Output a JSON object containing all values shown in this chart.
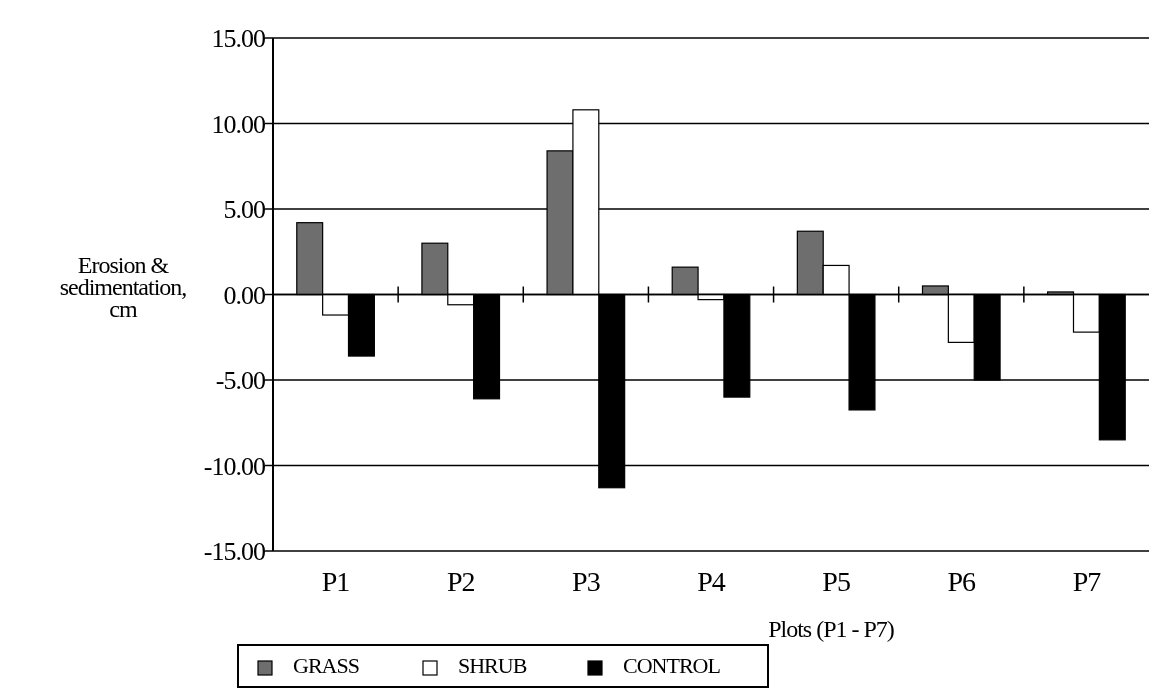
{
  "chart_data": {
    "type": "bar",
    "xlabel": "Plots (P1 - P7)",
    "ylabel": "Erosion & sedimentation, cm",
    "categories": [
      "P1",
      "P2",
      "P3",
      "P4",
      "P5",
      "P6",
      "P7"
    ],
    "series": [
      {
        "name": "GRASS",
        "color": "#6e6e6e",
        "values": [
          4.2,
          3.0,
          8.4,
          1.6,
          3.7,
          0.5,
          0.15
        ]
      },
      {
        "name": "SHRUB",
        "color": "#ffffff",
        "values": [
          -1.2,
          -0.6,
          10.8,
          -0.3,
          1.7,
          -2.8,
          -2.2
        ]
      },
      {
        "name": "CONTROL",
        "color": "#000000",
        "values": [
          -3.6,
          -6.1,
          -11.3,
          -6.0,
          -6.75,
          -5.0,
          -8.5
        ]
      }
    ],
    "ylim": [
      -15,
      15
    ],
    "yticks": [
      {
        "value": -15,
        "label": "-15.00"
      },
      {
        "value": -10,
        "label": "-10.00"
      },
      {
        "value": -5,
        "label": "-5.00"
      },
      {
        "value": 0,
        "label": "0.00"
      },
      {
        "value": 5,
        "label": "5.00"
      },
      {
        "value": 10,
        "label": "10.00"
      },
      {
        "value": 15,
        "label": "15.00"
      }
    ],
    "grid": "y",
    "legend": "bottom"
  }
}
